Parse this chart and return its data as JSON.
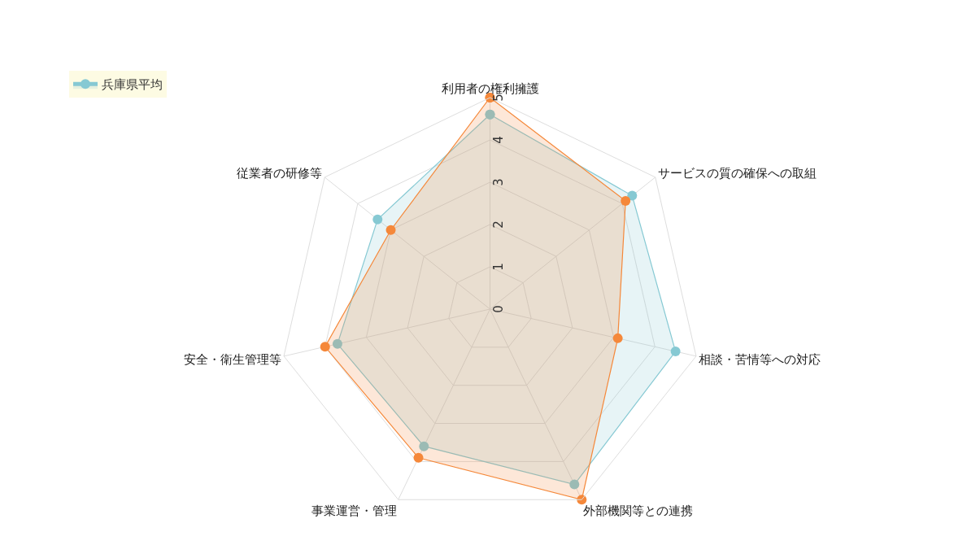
{
  "chart_data": {
    "type": "radar",
    "categories": [
      "利用者の権利擁護",
      "サービスの質の確保への取組",
      "相談・苦情等への対応",
      "外部機関等との連携",
      "事業運営・管理",
      "安全・衛生管理等",
      "従業者の研修等"
    ],
    "series": [
      {
        "name": "兵庫県平均",
        "color": "#86c9d3",
        "values": [
          4.6,
          4.3,
          4.5,
          4.6,
          3.6,
          3.7,
          3.4
        ]
      },
      {
        "color": "#f5883a",
        "values": [
          5.0,
          4.1,
          3.1,
          5.0,
          3.9,
          4.0,
          3.0
        ]
      }
    ],
    "ylim": [
      0,
      5
    ],
    "yticks": [
      0,
      1,
      2,
      3,
      4,
      5
    ],
    "marker": "circle",
    "legend": "top",
    "grid": true
  }
}
